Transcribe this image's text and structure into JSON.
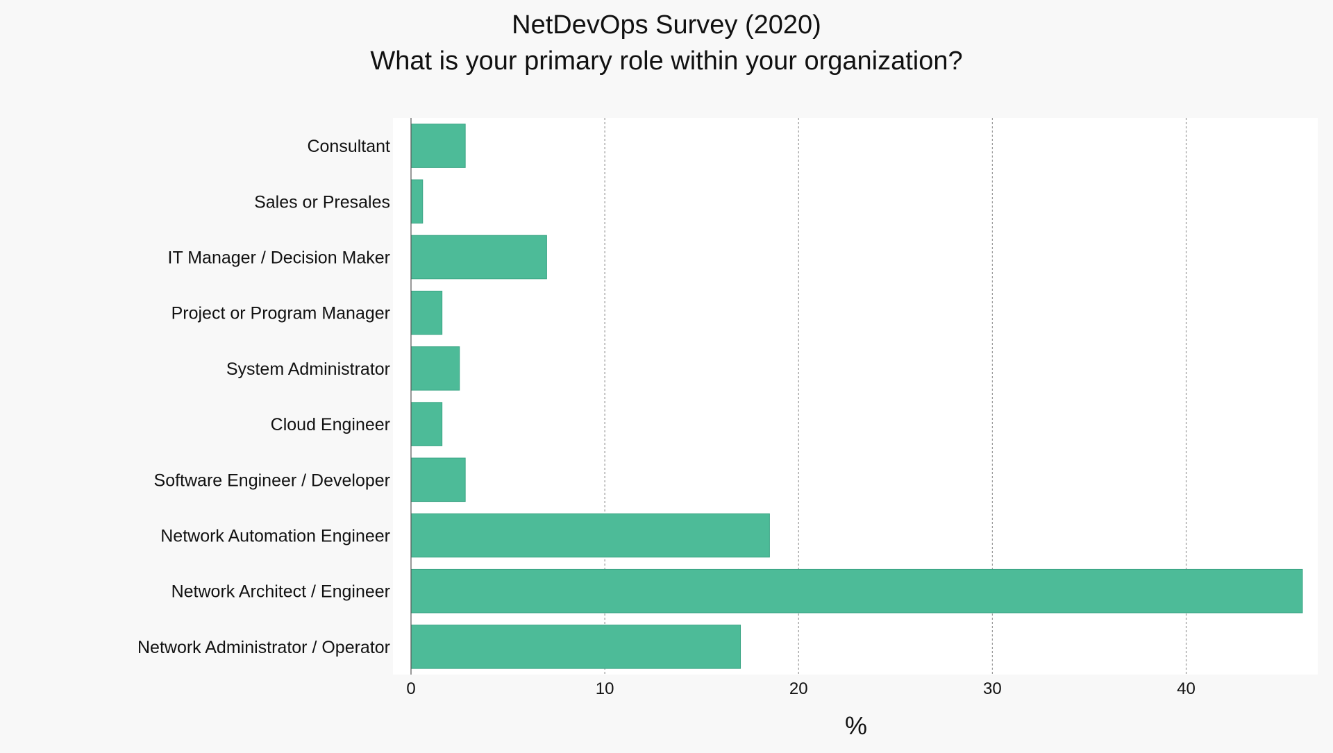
{
  "chart_data": {
    "type": "bar",
    "orientation": "horizontal",
    "title": "NetDevOps Survey (2020)",
    "subtitle": "What is your primary role within your organization?",
    "xlabel": "%",
    "ylabel": "",
    "xlim": [
      0,
      46
    ],
    "xticks": [
      0,
      10,
      20,
      30,
      40
    ],
    "grid": "vertical dashed",
    "categories": [
      "Consultant",
      "Sales or Presales",
      "IT Manager / Decision Maker",
      "Project or Program Manager",
      "System Administrator",
      "Cloud Engineer",
      "Software Engineer / Developer",
      "Network Automation Engineer",
      "Network Architect / Engineer",
      "Network Administrator / Operator"
    ],
    "values": [
      2.8,
      0.6,
      7.0,
      1.6,
      2.5,
      1.6,
      2.8,
      18.5,
      46.0,
      17.0
    ],
    "bar_color": "#4dbb98",
    "bar_edge_color": "#3aa584"
  }
}
